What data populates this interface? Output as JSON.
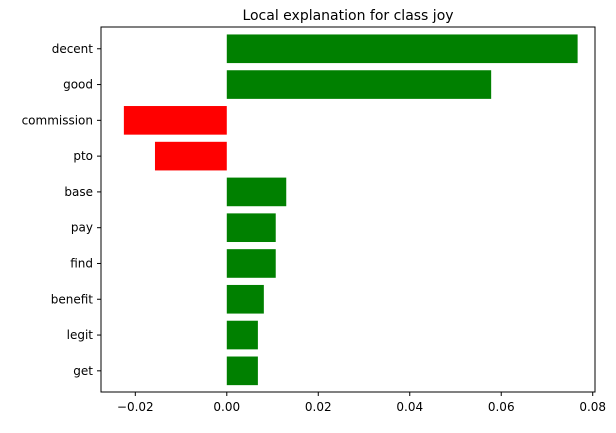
{
  "chart_data": {
    "type": "bar",
    "orientation": "horizontal",
    "title": "Local explanation for class joy",
    "xlabel": "",
    "ylabel": "",
    "categories": [
      "decent",
      "good",
      "commission",
      "pto",
      "base",
      "pay",
      "find",
      "benefit",
      "legit",
      "get"
    ],
    "values": [
      0.0767,
      0.0578,
      -0.0225,
      -0.0157,
      0.013,
      0.0107,
      0.0107,
      0.0081,
      0.0068,
      0.0068
    ],
    "xlim": [
      -0.0275,
      0.0805
    ],
    "xticks": [
      -0.02,
      0.0,
      0.02,
      0.04,
      0.06,
      0.08
    ],
    "xtick_labels": [
      "−0.02",
      "0.00",
      "0.02",
      "0.04",
      "0.06",
      "0.08"
    ],
    "positive_color": "#008000",
    "negative_color": "#ff0000",
    "grid": false,
    "legend": "none"
  }
}
